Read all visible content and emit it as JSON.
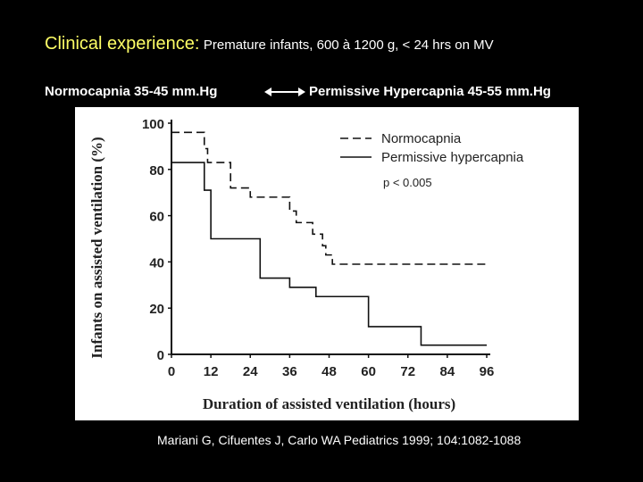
{
  "slide": {
    "title_main": "Clinical experience:",
    "title_sub": "Premature infants, 600 à 1200 g, < 24 hrs on MV",
    "mode_left": "Normocapnia  35-45 mm.Hg",
    "mode_right": "Permissive Hypercapnia  45-55 mm.Hg",
    "citation": "Mariani G, Cifuentes J, Carlo WA  Pediatrics 1999; 104:1082-1088"
  },
  "colors": {
    "background": "#000000",
    "title_accent": "#ffff66",
    "panel": "#ffffff",
    "ink": "#111111"
  },
  "chart_data": {
    "type": "line",
    "step": true,
    "title": "",
    "xlabel": "Duration of assisted ventilation (hours)",
    "ylabel": "Infants on assisted ventilation (%)",
    "xlim": [
      0,
      96
    ],
    "ylim": [
      0,
      100
    ],
    "x_ticks": [
      0,
      12,
      24,
      36,
      48,
      60,
      72,
      84,
      96
    ],
    "y_ticks": [
      0,
      20,
      40,
      60,
      80,
      100
    ],
    "grid": false,
    "legend_position": "top-right",
    "annotation": "p < 0.005",
    "series": [
      {
        "name": "Normocapnia",
        "style": "dashed",
        "x": [
          0,
          8,
          10,
          11,
          18,
          24,
          30,
          36,
          38,
          43,
          46,
          47,
          49,
          96
        ],
        "y": [
          96,
          96,
          89,
          83,
          72,
          68,
          68,
          62,
          57,
          52,
          47,
          43,
          39,
          39
        ]
      },
      {
        "name": "Permissive hypercapnia",
        "style": "solid",
        "x": [
          0,
          8,
          10,
          12,
          24,
          27,
          36,
          44,
          60,
          70,
          76,
          96
        ],
        "y": [
          83,
          83,
          71,
          50,
          50,
          33,
          29,
          25,
          12,
          12,
          4,
          4
        ]
      }
    ]
  }
}
